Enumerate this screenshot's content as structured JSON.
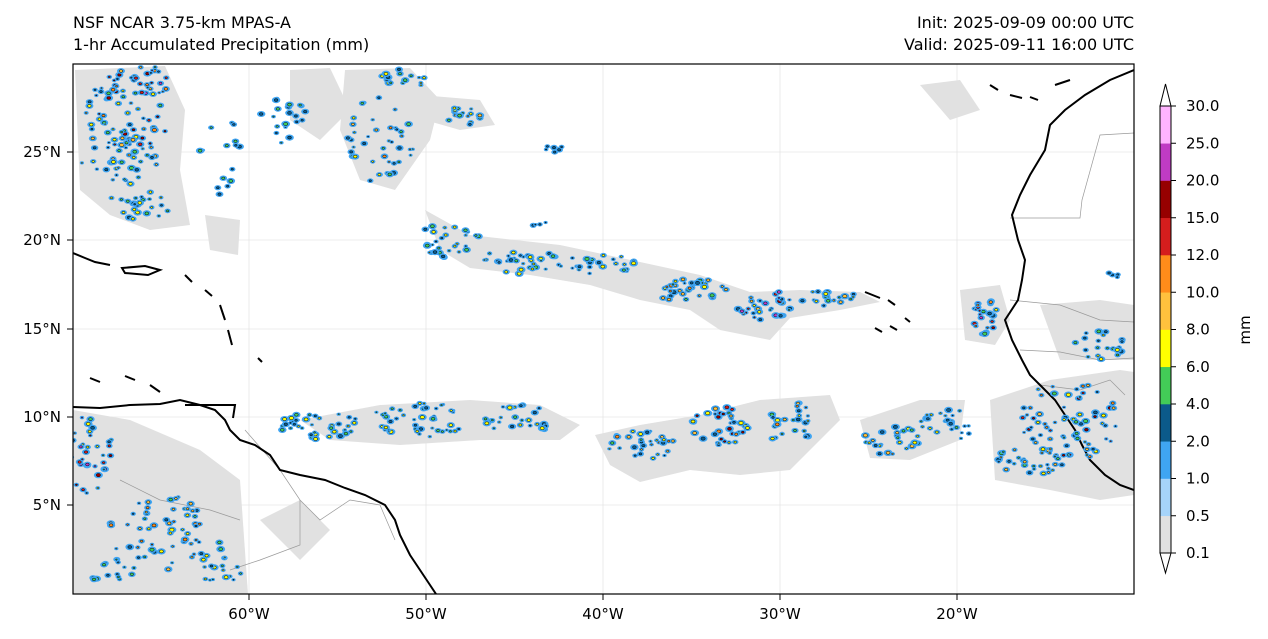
{
  "header": {
    "left_line1": "NSF NCAR 3.75-km MPAS-A",
    "left_line2": "1-hr Accumulated Precipitation (mm)",
    "right_line1": "Init: 2025-09-09 00:00 UTC",
    "right_line2": "Valid: 2025-09-11 16:00 UTC"
  },
  "axes": {
    "lon_labels": [
      "60°W",
      "50°W",
      "40°W",
      "30°W",
      "20°W"
    ],
    "lat_labels": [
      "25°N",
      "20°N",
      "15°N",
      "10°N",
      "5°N"
    ]
  },
  "colorbar": {
    "unit_label": "mm",
    "levels": [
      "0.1",
      "0.5",
      "1.0",
      "2.0",
      "4.0",
      "6.0",
      "8.0",
      "10.0",
      "12.0",
      "15.0",
      "20.0",
      "25.0",
      "30.0"
    ],
    "colors": [
      "#e1e1e1",
      "#a6d4fa",
      "#3fa5f2",
      "#0b5a8a",
      "#43cc57",
      "#ffff00",
      "#ffc13d",
      "#ff8c1a",
      "#d51d1d",
      "#960000",
      "#c03bc4",
      "#ffb4ff"
    ]
  }
}
